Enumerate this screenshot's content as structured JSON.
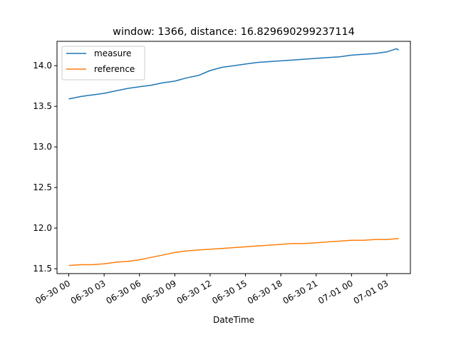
{
  "chart_data": {
    "type": "line",
    "title": "window: 1366, distance: 16.829690299237114",
    "xlabel": "DateTime",
    "ylabel": "",
    "x_tick_labels": [
      "06-30 00",
      "06-30 03",
      "06-30 06",
      "06-30 09",
      "06-30 12",
      "06-30 15",
      "06-30 18",
      "06-30 21",
      "07-01 00",
      "07-01 03"
    ],
    "y_tick_labels": [
      "11.5",
      "12.0",
      "12.5",
      "13.0",
      "13.5",
      "14.0"
    ],
    "ylim": [
      11.44,
      14.3
    ],
    "xlim": [
      "2024-06-29T23:00",
      "2024-07-01T05:00"
    ],
    "grid": false,
    "legend_position": "upper left",
    "x_dates": [
      "2024-06-30T00:00",
      "2024-06-30T01:00",
      "2024-06-30T02:00",
      "2024-06-30T03:00",
      "2024-06-30T04:00",
      "2024-06-30T05:00",
      "2024-06-30T06:00",
      "2024-06-30T07:00",
      "2024-06-30T08:00",
      "2024-06-30T09:00",
      "2024-06-30T10:00",
      "2024-06-30T11:00",
      "2024-06-30T12:00",
      "2024-06-30T13:00",
      "2024-06-30T14:00",
      "2024-06-30T15:00",
      "2024-06-30T16:00",
      "2024-06-30T17:00",
      "2024-06-30T18:00",
      "2024-06-30T19:00",
      "2024-06-30T20:00",
      "2024-06-30T21:00",
      "2024-06-30T22:00",
      "2024-06-30T23:00",
      "2024-07-01T00:00",
      "2024-07-01T01:00",
      "2024-07-01T02:00",
      "2024-07-01T03:00",
      "2024-07-01T04:00",
      "2024-07-01T03:50"
    ],
    "series": [
      {
        "name": "measure",
        "color": "#1f77b4",
        "values": [
          13.59,
          13.62,
          13.64,
          13.66,
          13.69,
          13.72,
          13.74,
          13.76,
          13.79,
          13.81,
          13.85,
          13.88,
          13.94,
          13.98,
          14.0,
          14.02,
          14.04,
          14.05,
          14.06,
          14.07,
          14.08,
          14.09,
          14.1,
          14.11,
          14.13,
          14.14,
          14.15,
          14.17,
          14.19,
          14.21
        ]
      },
      {
        "name": "reference",
        "color": "#ff7f0e",
        "values": [
          11.54,
          11.55,
          11.55,
          11.56,
          11.58,
          11.59,
          11.61,
          11.64,
          11.67,
          11.7,
          11.72,
          11.73,
          11.74,
          11.75,
          11.76,
          11.77,
          11.78,
          11.79,
          11.8,
          11.81,
          11.81,
          11.82,
          11.83,
          11.84,
          11.85,
          11.85,
          11.86,
          11.86,
          11.87,
          11.87
        ]
      }
    ]
  }
}
